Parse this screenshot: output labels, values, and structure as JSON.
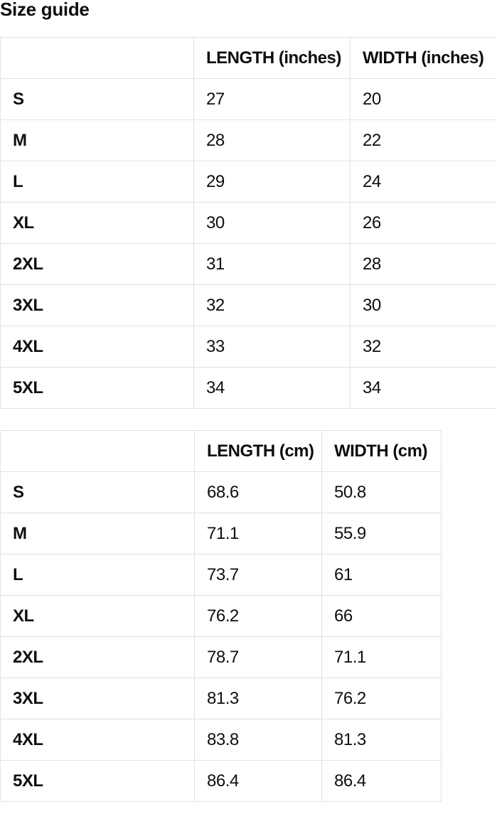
{
  "page": {
    "title": "Size guide"
  },
  "colors": {
    "background": "#ffffff",
    "text": "#0f0f0f",
    "table_border": "#e2e2e2"
  },
  "table_inches": {
    "headers": [
      "",
      "LENGTH (inches)",
      "WIDTH (inches)"
    ],
    "rows": [
      {
        "size": "S",
        "length": "27",
        "width": "20"
      },
      {
        "size": "M",
        "length": "28",
        "width": "22"
      },
      {
        "size": "L",
        "length": "29",
        "width": "24"
      },
      {
        "size": "XL",
        "length": "30",
        "width": "26"
      },
      {
        "size": "2XL",
        "length": "31",
        "width": "28"
      },
      {
        "size": "3XL",
        "length": "32",
        "width": "30"
      },
      {
        "size": "4XL",
        "length": "33",
        "width": "32"
      },
      {
        "size": "5XL",
        "length": "34",
        "width": "34"
      }
    ]
  },
  "table_cm": {
    "headers": [
      "",
      "LENGTH (cm)",
      "WIDTH (cm)"
    ],
    "rows": [
      {
        "size": "S",
        "length": "68.6",
        "width": "50.8"
      },
      {
        "size": "M",
        "length": "71.1",
        "width": "55.9"
      },
      {
        "size": "L",
        "length": "73.7",
        "width": "61"
      },
      {
        "size": "XL",
        "length": "76.2",
        "width": "66"
      },
      {
        "size": "2XL",
        "length": "78.7",
        "width": "71.1"
      },
      {
        "size": "3XL",
        "length": "81.3",
        "width": "76.2"
      },
      {
        "size": "4XL",
        "length": "83.8",
        "width": "81.3"
      },
      {
        "size": "5XL",
        "length": "86.4",
        "width": "86.4"
      }
    ]
  }
}
